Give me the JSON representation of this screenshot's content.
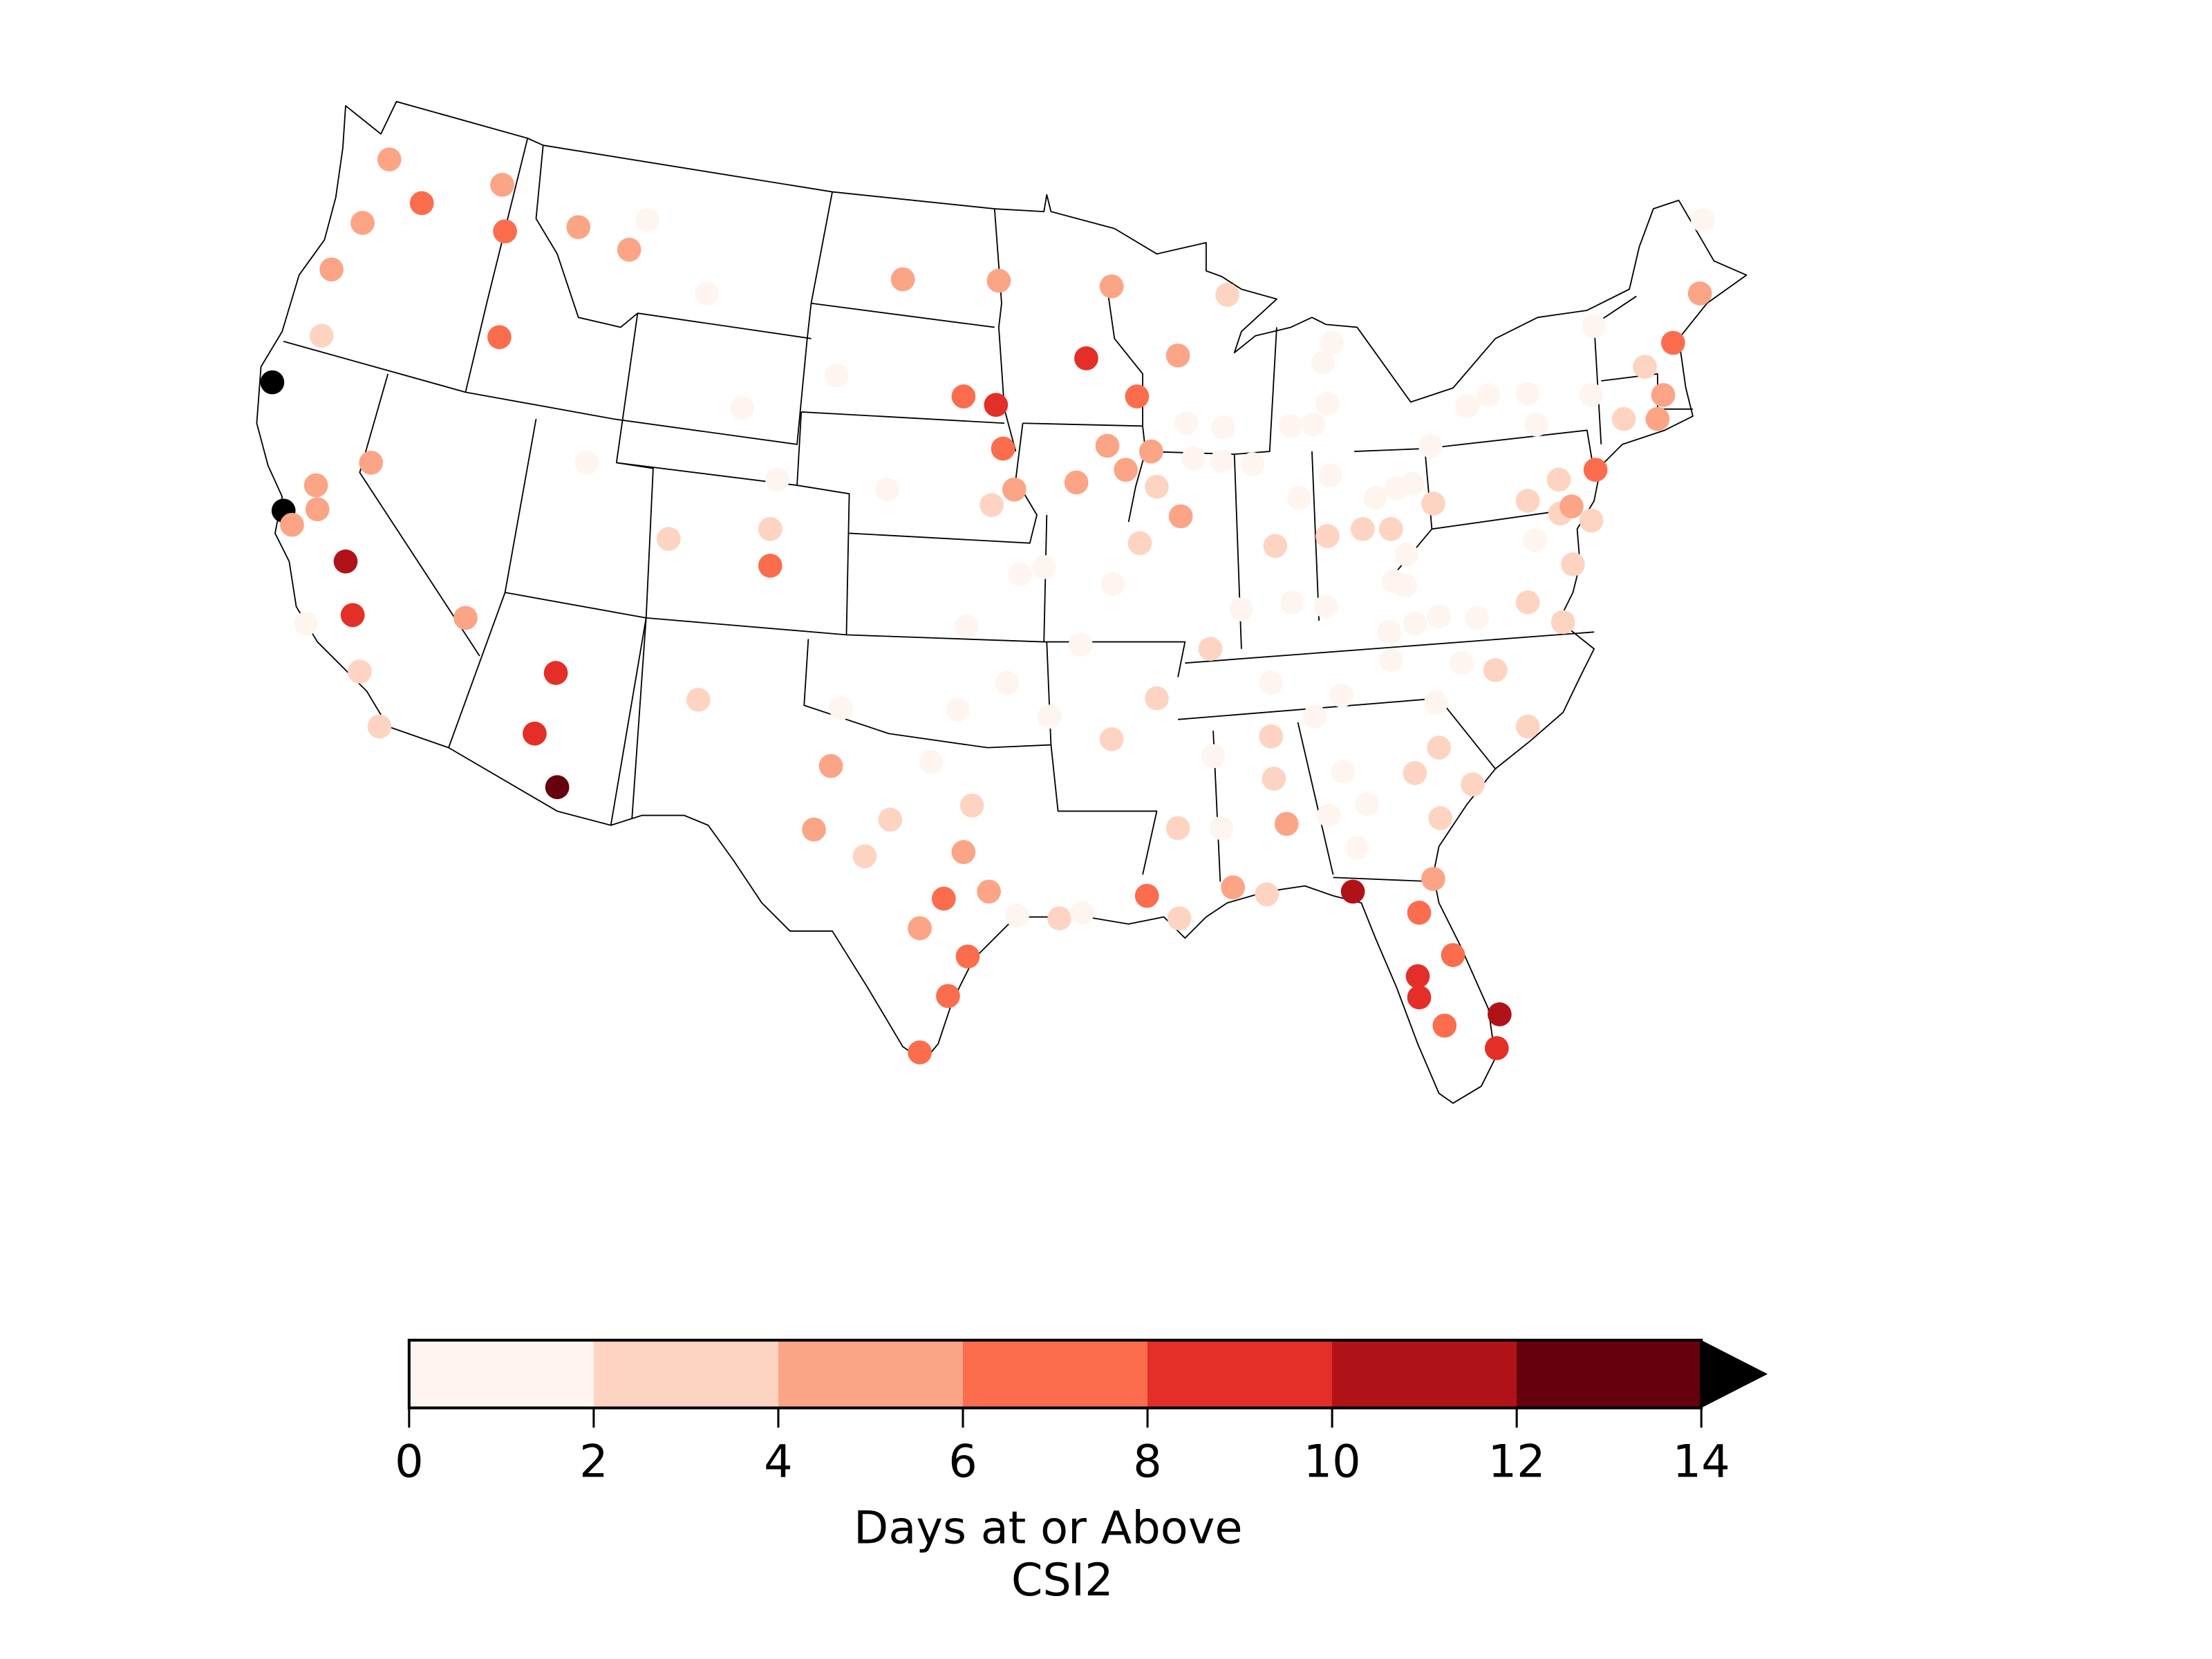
{
  "chart_data": {
    "type": "scatter",
    "title": "",
    "map_region": "Contiguous United States (state boundaries)",
    "colorbar": {
      "label_line1": "Days at or Above",
      "label_line2": "CSI2",
      "ticks": [
        "0",
        "2",
        "4",
        "6",
        "8",
        "10",
        "12",
        "14"
      ],
      "range": [
        0,
        14
      ],
      "extend": "max",
      "bins": [
        {
          "range": "0-2",
          "color": "#fff5f0"
        },
        {
          "range": "2-4",
          "color": "#fdd4c2"
        },
        {
          "range": "4-6",
          "color": "#fca486"
        },
        {
          "range": "6-8",
          "color": "#fb6d4d"
        },
        {
          "range": "8-10",
          "color": "#e32f27"
        },
        {
          "range": "10-12",
          "color": "#b11218"
        },
        {
          "range": "12-14",
          "color": "#67000d"
        },
        {
          "range": ">14",
          "color": "#000000"
        }
      ]
    },
    "points_note": "x,y in 1568x1176 figure coordinates; bin index 0-7 maps to colorbar.bins",
    "points": [
      [
        276,
        113,
        2
      ],
      [
        299,
        144,
        3
      ],
      [
        356,
        131,
        2
      ],
      [
        358,
        164,
        3
      ],
      [
        257,
        158,
        2
      ],
      [
        235,
        191,
        2
      ],
      [
        228,
        238,
        1
      ],
      [
        354,
        239,
        3
      ],
      [
        410,
        161,
        2
      ],
      [
        446,
        177,
        2
      ],
      [
        459,
        156,
        0
      ],
      [
        501,
        208,
        0
      ],
      [
        193,
        271,
        7
      ],
      [
        201,
        362,
        7
      ],
      [
        207,
        372,
        2
      ],
      [
        224,
        344,
        2
      ],
      [
        225,
        361,
        2
      ],
      [
        263,
        328,
        2
      ],
      [
        245,
        398,
        5
      ],
      [
        250,
        436,
        4
      ],
      [
        217,
        442,
        0
      ],
      [
        255,
        476,
        1
      ],
      [
        269,
        515,
        1
      ],
      [
        330,
        438,
        2
      ],
      [
        394,
        477,
        4
      ],
      [
        379,
        520,
        4
      ],
      [
        395,
        558,
        6
      ],
      [
        416,
        328,
        0
      ],
      [
        526,
        289,
        0
      ],
      [
        495,
        496,
        1
      ],
      [
        474,
        382,
        1
      ],
      [
        546,
        375,
        1
      ],
      [
        546,
        401,
        3
      ],
      [
        551,
        340,
        0
      ],
      [
        593,
        266,
        0
      ],
      [
        629,
        347,
        0
      ],
      [
        640,
        198,
        2
      ],
      [
        708,
        199,
        2
      ],
      [
        683,
        281,
        3
      ],
      [
        706,
        287,
        4
      ],
      [
        711,
        318,
        3
      ],
      [
        719,
        347,
        2
      ],
      [
        703,
        358,
        1
      ],
      [
        788,
        203,
        2
      ],
      [
        770,
        254,
        4
      ],
      [
        806,
        281,
        3
      ],
      [
        763,
        342,
        2
      ],
      [
        785,
        316,
        2
      ],
      [
        798,
        333,
        2
      ],
      [
        816,
        320,
        2
      ],
      [
        820,
        345,
        1
      ],
      [
        837,
        366,
        2
      ],
      [
        808,
        385,
        1
      ],
      [
        835,
        252,
        2
      ],
      [
        870,
        209,
        1
      ],
      [
        723,
        407,
        0
      ],
      [
        740,
        402,
        0
      ],
      [
        789,
        414,
        0
      ],
      [
        766,
        457,
        0
      ],
      [
        685,
        444,
        0
      ],
      [
        714,
        484,
        0
      ],
      [
        679,
        503,
        0
      ],
      [
        744,
        508,
        0
      ],
      [
        589,
        543,
        2
      ],
      [
        596,
        502,
        0
      ],
      [
        577,
        588,
        2
      ],
      [
        631,
        581,
        1
      ],
      [
        613,
        607,
        1
      ],
      [
        660,
        540,
        0
      ],
      [
        689,
        571,
        1
      ],
      [
        683,
        604,
        2
      ],
      [
        669,
        637,
        3
      ],
      [
        701,
        632,
        2
      ],
      [
        652,
        658,
        2
      ],
      [
        686,
        678,
        3
      ],
      [
        672,
        706,
        3
      ],
      [
        652,
        746,
        3
      ],
      [
        721,
        649,
        0
      ],
      [
        751,
        651,
        1
      ],
      [
        767,
        647,
        0
      ],
      [
        788,
        524,
        1
      ],
      [
        820,
        495,
        1
      ],
      [
        858,
        460,
        1
      ],
      [
        860,
        536,
        0
      ],
      [
        835,
        587,
        1
      ],
      [
        866,
        587,
        0
      ],
      [
        813,
        635,
        3
      ],
      [
        836,
        651,
        1
      ],
      [
        901,
        484,
        0
      ],
      [
        901,
        522,
        1
      ],
      [
        903,
        552,
        1
      ],
      [
        912,
        584,
        2
      ],
      [
        874,
        629,
        2
      ],
      [
        898,
        634,
        1
      ],
      [
        841,
        300,
        0
      ],
      [
        867,
        303,
        0
      ],
      [
        846,
        325,
        0
      ],
      [
        866,
        327,
        0
      ],
      [
        888,
        329,
        0
      ],
      [
        880,
        432,
        0
      ],
      [
        916,
        427,
        0
      ],
      [
        940,
        430,
        0
      ],
      [
        904,
        387,
        1
      ],
      [
        921,
        353,
        0
      ],
      [
        941,
        380,
        1
      ],
      [
        943,
        337,
        0
      ],
      [
        915,
        302,
        0
      ],
      [
        931,
        301,
        0
      ],
      [
        941,
        286,
        0
      ],
      [
        944,
        243,
        0
      ],
      [
        938,
        257,
        0
      ],
      [
        951,
        493,
        0
      ],
      [
        952,
        547,
        0
      ],
      [
        969,
        570,
        0
      ],
      [
        962,
        601,
        0
      ],
      [
        942,
        578,
        0
      ],
      [
        932,
        508,
        0
      ],
      [
        966,
        375,
        1
      ],
      [
        986,
        375,
        1
      ],
      [
        988,
        412,
        0
      ],
      [
        997,
        393,
        0
      ],
      [
        975,
        353,
        0
      ],
      [
        990,
        346,
        0
      ],
      [
        1016,
        357,
        1
      ],
      [
        1001,
        343,
        0
      ],
      [
        996,
        415,
        0
      ],
      [
        985,
        448,
        0
      ],
      [
        986,
        468,
        0
      ],
      [
        1003,
        442,
        0
      ],
      [
        1020,
        437,
        0
      ],
      [
        1047,
        438,
        0
      ],
      [
        1060,
        475,
        1
      ],
      [
        1036,
        470,
        0
      ],
      [
        1018,
        498,
        0
      ],
      [
        1020,
        530,
        1
      ],
      [
        1003,
        548,
        1
      ],
      [
        1044,
        556,
        1
      ],
      [
        1021,
        580,
        1
      ],
      [
        1016,
        623,
        2
      ],
      [
        1006,
        647,
        3
      ],
      [
        959,
        632,
        5
      ],
      [
        1005,
        692,
        4
      ],
      [
        1006,
        707,
        4
      ],
      [
        1030,
        677,
        3
      ],
      [
        1024,
        727,
        3
      ],
      [
        1063,
        719,
        5
      ],
      [
        1061,
        743,
        4
      ],
      [
        1014,
        316,
        0
      ],
      [
        1040,
        288,
        0
      ],
      [
        1055,
        280,
        0
      ],
      [
        1083,
        279,
        0
      ],
      [
        1089,
        301,
        0
      ],
      [
        1130,
        231,
        0
      ],
      [
        1128,
        280,
        0
      ],
      [
        1083,
        355,
        1
      ],
      [
        1105,
        340,
        1
      ],
      [
        1106,
        364,
        1
      ],
      [
        1114,
        359,
        2
      ],
      [
        1128,
        369,
        1
      ],
      [
        1088,
        383,
        0
      ],
      [
        1115,
        400,
        1
      ],
      [
        1083,
        427,
        1
      ],
      [
        1108,
        441,
        1
      ],
      [
        1083,
        515,
        1
      ],
      [
        1131,
        333,
        3
      ],
      [
        1151,
        297,
        1
      ],
      [
        1166,
        260,
        1
      ],
      [
        1179,
        280,
        2
      ],
      [
        1175,
        297,
        2
      ],
      [
        1186,
        243,
        3
      ],
      [
        1205,
        208,
        2
      ],
      [
        1207,
        156,
        0
      ]
    ]
  }
}
